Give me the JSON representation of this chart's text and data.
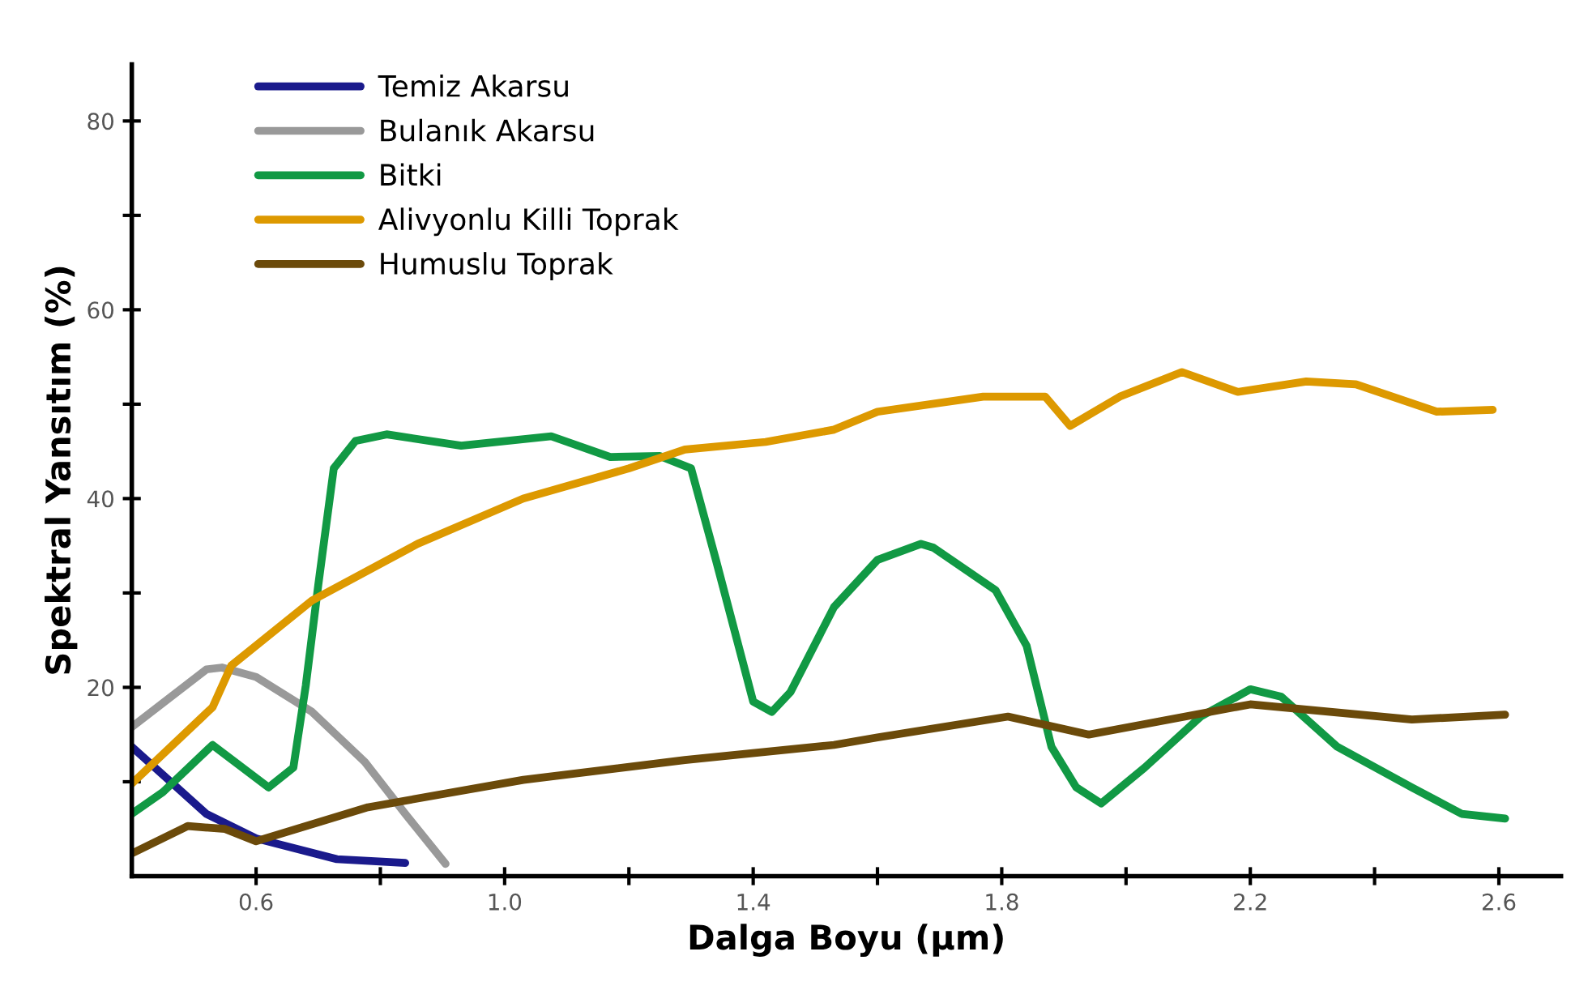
{
  "chart_data": {
    "type": "line",
    "xlabel": "Dalga Boyu (µm)",
    "ylabel": "Spektral Yansıtım (%)",
    "xlim": [
      0.4,
      2.7
    ],
    "ylim": [
      0,
      86
    ],
    "xticks": [
      0.6,
      {
        "value": 0.8,
        "label": null
      },
      {
        "value": 1.0,
        "label": "1.0"
      },
      {
        "value": 1.2,
        "label": null
      },
      1.4,
      {
        "value": 1.6,
        "label": null
      },
      1.8,
      {
        "value": 2.0,
        "label": null
      },
      2.2,
      {
        "value": 2.4,
        "label": null
      },
      2.6
    ],
    "yticks": [
      {
        "value": 10,
        "label": null
      },
      20,
      {
        "value": 30,
        "label": null
      },
      40,
      {
        "value": 50,
        "label": null
      },
      60,
      {
        "value": 70,
        "label": null
      },
      80
    ],
    "grid": false,
    "legend": "top left",
    "marker": "none",
    "line_style": "solid",
    "series": [
      {
        "name": "Temiz Akarsu",
        "color": "#1a1a8c",
        "x": [
          0.4,
          0.52,
          0.6,
          0.73,
          0.84
        ],
        "values": [
          13.7,
          6.6,
          4.0,
          1.8,
          1.4
        ]
      },
      {
        "name": "Bulanık Akarsu",
        "color": "#999999",
        "x": [
          0.4,
          0.52,
          0.545,
          0.6,
          0.69,
          0.775,
          0.84,
          0.905
        ],
        "values": [
          15.8,
          21.9,
          22.1,
          21.1,
          17.4,
          12.1,
          6.6,
          1.3
        ]
      },
      {
        "name": "Bitki",
        "color": "#119944",
        "x": [
          0.4,
          0.45,
          0.53,
          0.62,
          0.66,
          0.68,
          0.7,
          0.725,
          0.76,
          0.81,
          0.93,
          1.075,
          1.17,
          1.25,
          1.3,
          1.34,
          1.4,
          1.43,
          1.46,
          1.53,
          1.6,
          1.67,
          1.69,
          1.79,
          1.84,
          1.88,
          1.92,
          1.96,
          2.03,
          2.12,
          2.2,
          2.25,
          2.34,
          2.46,
          2.54,
          2.61
        ],
        "values": [
          6.6,
          8.9,
          13.9,
          9.4,
          11.5,
          20.2,
          30.8,
          43.2,
          46.1,
          46.8,
          45.6,
          46.6,
          44.4,
          44.5,
          43.2,
          33.5,
          18.5,
          17.4,
          19.5,
          28.5,
          33.5,
          35.2,
          34.8,
          30.3,
          24.4,
          13.7,
          9.4,
          7.7,
          11.5,
          16.9,
          19.8,
          19.0,
          13.7,
          9.4,
          6.6,
          6.1
        ]
      },
      {
        "name": "Alivyonlu Killi Toprak",
        "color": "#dd9900",
        "x": [
          0.4,
          0.53,
          0.56,
          0.69,
          0.86,
          1.03,
          1.2,
          1.29,
          1.42,
          1.53,
          1.6,
          1.77,
          1.87,
          1.91,
          1.99,
          2.09,
          2.18,
          2.29,
          2.37,
          2.5,
          2.59
        ],
        "values": [
          9.8,
          17.9,
          22.3,
          29.2,
          35.2,
          40,
          43.2,
          45.2,
          46,
          47.3,
          49.2,
          50.8,
          50.8,
          47.7,
          50.8,
          53.4,
          51.3,
          52.4,
          52.1,
          49.2,
          49.4
        ]
      },
      {
        "name": "Humuslu Toprak",
        "color": "#6b4a0a",
        "x": [
          0.4,
          0.49,
          0.55,
          0.6,
          0.78,
          1.03,
          1.29,
          1.53,
          1.6,
          1.81,
          1.94,
          2.2,
          2.46,
          2.61
        ],
        "values": [
          2.4,
          5.3,
          5.0,
          3.7,
          7.3,
          10.2,
          12.3,
          13.9,
          14.7,
          16.9,
          15.0,
          18.2,
          16.6,
          17.1
        ]
      }
    ]
  }
}
